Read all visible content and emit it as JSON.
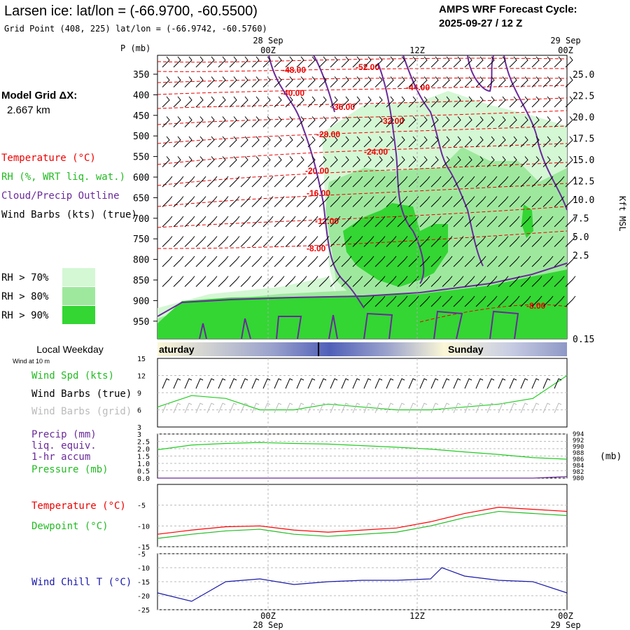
{
  "header": {
    "title": "Larsen ice:  lat/lon = (-66.9700, -60.5500)",
    "subtitle": "Grid Point (408, 225) lat/lon = (-66.9742, -60.5760)",
    "cycle_line1": "AMPS WRF Forecast Cycle:",
    "cycle_line2": "2025-09-27 / 12  Z"
  },
  "left": {
    "model_grid_label": "Model Grid ΔX:",
    "model_grid_value": "2.667 km",
    "legend_temperature": "Temperature (°C)",
    "legend_rh": "RH (%, WRT liq. wat.)",
    "legend_cloud": "Cloud/Precip Outline",
    "legend_wind": "Wind Barbs (kts) (true)",
    "rh_levels": [
      {
        "label": "RH > 70%",
        "color": "#d4f7d4"
      },
      {
        "label": "RH > 80%",
        "color": "#9ee89e"
      },
      {
        "label": "RH > 90%",
        "color": "#33d633"
      }
    ]
  },
  "time_axis": {
    "top_dates": [
      "28 Sep",
      "29 Sep"
    ],
    "ticks": [
      "00Z",
      "12Z",
      "00Z"
    ],
    "bottom_dates": [
      "28 Sep",
      "29 Sep"
    ],
    "weekday_title": "Local Weekday",
    "wind_at": "Wind at 10 m",
    "days": [
      "aturday",
      "Sunday"
    ]
  },
  "colors": {
    "temperature": "#ff0000",
    "dewpoint": "#22bb22",
    "rh": "#22cc22",
    "cloud": "#6a2a9a",
    "wind_chill": "#1a1aaa",
    "grid_gray": "#999999",
    "day_band": "#5060b8"
  },
  "chart_data": [
    {
      "type": "heatmap",
      "name": "cross-section",
      "ylabel": "P (mb)",
      "y2label": "Kft MSL",
      "p_ticks": [
        "350",
        "400",
        "450",
        "500",
        "550",
        "600",
        "650",
        "700",
        "750",
        "800",
        "850",
        "900",
        "950"
      ],
      "kft_ticks": [
        "25.0",
        "22.5",
        "20.0",
        "17.5",
        "15.0",
        "12.5",
        "10.0",
        "7.5",
        "5.0",
        "2.5",
        "0.15"
      ],
      "temperature_contours": [
        "-52.00",
        "-48.00",
        "-44.00",
        "-40.00",
        "-36.00",
        "-32.00",
        "-28.00",
        "-24.00",
        "-20.00",
        "-16.00",
        "-12.00",
        "-8.00",
        "-8.00"
      ]
    },
    {
      "type": "line",
      "name": "wind",
      "labels": [
        "Wind Spd (kts)",
        "Wind Barbs (true)",
        "Wind Barbs (grid)"
      ],
      "y_ticks": [
        "15",
        "12",
        "9",
        "6",
        "3"
      ],
      "ylim": [
        3,
        15
      ],
      "x": [
        0,
        3,
        6,
        9,
        12,
        15,
        18,
        21,
        24,
        27,
        30,
        33,
        36
      ],
      "values": [
        6.5,
        8.5,
        8,
        6,
        6,
        7,
        6.5,
        6,
        6,
        6.5,
        7,
        8,
        12
      ]
    },
    {
      "type": "line",
      "name": "precip-pressure",
      "labels": [
        "Precip (mm)",
        "liq. equiv.",
        "1-hr accum",
        "Pressure (mb)"
      ],
      "y_ticks": [
        "3",
        "2.5",
        "2.0",
        "1.5",
        "1.0",
        "0.5",
        "0.0"
      ],
      "y2_ticks": [
        "994",
        "992",
        "990",
        "988",
        "986",
        "984",
        "982",
        "980"
      ],
      "y2_unit": "(mb)",
      "x": [
        0,
        3,
        6,
        9,
        12,
        15,
        18,
        21,
        24,
        27,
        30,
        33,
        36
      ],
      "pressure": [
        989,
        990.5,
        991,
        991.3,
        991,
        990.8,
        990.3,
        989.8,
        989.2,
        988.3,
        987.5,
        986.5,
        986
      ],
      "precip": [
        0,
        0,
        0,
        0,
        0,
        0,
        0,
        0,
        0,
        0,
        0,
        0,
        0.1
      ]
    },
    {
      "type": "line",
      "name": "temperature-dewpoint",
      "labels": [
        "Temperature (°C)",
        "Dewpoint (°C)"
      ],
      "y_ticks": [
        "-5",
        "-10",
        "-15"
      ],
      "ylim": [
        -15,
        0
      ],
      "x": [
        0,
        3,
        6,
        9,
        12,
        15,
        18,
        21,
        24,
        27,
        30,
        33,
        36
      ],
      "temperature": [
        -12,
        -11,
        -10.2,
        -10,
        -11,
        -11.5,
        -11,
        -10.5,
        -9,
        -7,
        -5.5,
        -6,
        -6.5
      ],
      "dewpoint": [
        -13,
        -12,
        -11.2,
        -10.8,
        -12,
        -12.5,
        -12,
        -11.5,
        -10,
        -8,
        -6.5,
        -7,
        -7.5
      ]
    },
    {
      "type": "line",
      "name": "wind-chill",
      "labels": [
        "Wind Chill T (°C)"
      ],
      "y_ticks": [
        "-5",
        "-10",
        "-15",
        "-20",
        "-25"
      ],
      "ylim": [
        -25,
        -5
      ],
      "x": [
        0,
        3,
        6,
        9,
        12,
        15,
        18,
        21,
        24,
        25,
        27,
        30,
        33,
        36
      ],
      "values": [
        -19,
        -22,
        -15,
        -14,
        -16,
        -15,
        -14.5,
        -14.5,
        -14,
        -10,
        -13,
        -14.5,
        -15,
        -19
      ]
    }
  ]
}
